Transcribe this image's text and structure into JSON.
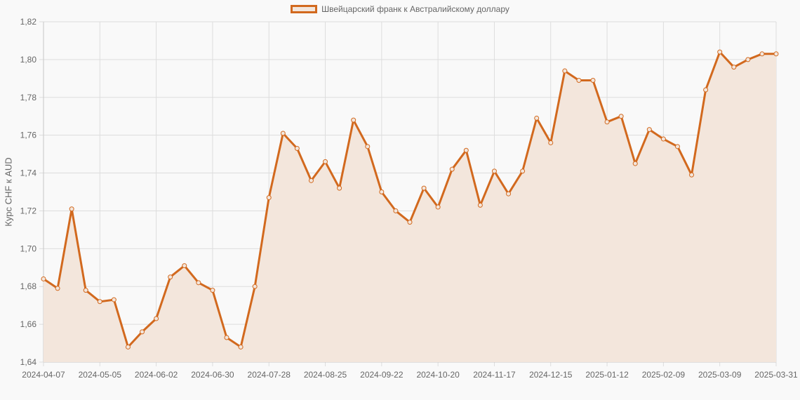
{
  "legend": {
    "label": "Швейцарский франк к Австралийскому доллару"
  },
  "axis": {
    "ylabel": "Курс CHF к AUD"
  },
  "colors": {
    "line": "#d2691e",
    "fill": "#f3e6dc",
    "grid": "#dddddd",
    "background": "#f9f9f9"
  },
  "chart_data": {
    "type": "line",
    "title": "",
    "legend": [
      "Швейцарский франк к Австралийскому доллару"
    ],
    "xlabel": "",
    "ylabel": "Курс CHF к AUD",
    "ylim": [
      1.64,
      1.82
    ],
    "yticks": [
      "1,64",
      "1,66",
      "1,68",
      "1,70",
      "1,72",
      "1,74",
      "1,76",
      "1,78",
      "1,80",
      "1,82"
    ],
    "xtick_labels": [
      "2024-04-07",
      "2024-05-05",
      "2024-06-02",
      "2024-06-30",
      "2024-07-28",
      "2024-08-25",
      "2024-09-22",
      "2024-10-20",
      "2024-11-17",
      "2024-12-15",
      "2025-01-12",
      "2025-02-09",
      "2025-03-09",
      "2025-03-31"
    ],
    "grid": true,
    "legend_position": "top",
    "x": [
      "2024-04-07",
      "2024-04-14",
      "2024-04-21",
      "2024-04-28",
      "2024-05-05",
      "2024-05-12",
      "2024-05-19",
      "2024-05-26",
      "2024-06-02",
      "2024-06-09",
      "2024-06-16",
      "2024-06-23",
      "2024-06-30",
      "2024-07-07",
      "2024-07-14",
      "2024-07-21",
      "2024-07-28",
      "2024-08-04",
      "2024-08-11",
      "2024-08-18",
      "2024-08-25",
      "2024-09-01",
      "2024-09-08",
      "2024-09-15",
      "2024-09-22",
      "2024-09-29",
      "2024-10-06",
      "2024-10-13",
      "2024-10-20",
      "2024-10-27",
      "2024-11-03",
      "2024-11-10",
      "2024-11-17",
      "2024-11-24",
      "2024-12-01",
      "2024-12-08",
      "2024-12-15",
      "2024-12-22",
      "2024-12-29",
      "2025-01-05",
      "2025-01-12",
      "2025-01-19",
      "2025-01-26",
      "2025-02-02",
      "2025-02-09",
      "2025-02-16",
      "2025-02-23",
      "2025-03-02",
      "2025-03-09",
      "2025-03-16",
      "2025-03-23",
      "2025-03-30",
      "2025-03-31"
    ],
    "series": [
      {
        "name": "Швейцарский франк к Австралийскому доллару",
        "values": [
          1.684,
          1.679,
          1.721,
          1.678,
          1.672,
          1.673,
          1.648,
          1.656,
          1.663,
          1.685,
          1.691,
          1.682,
          1.678,
          1.653,
          1.648,
          1.68,
          1.727,
          1.761,
          1.753,
          1.736,
          1.746,
          1.732,
          1.768,
          1.754,
          1.73,
          1.72,
          1.714,
          1.732,
          1.722,
          1.742,
          1.752,
          1.723,
          1.741,
          1.729,
          1.741,
          1.769,
          1.756,
          1.794,
          1.789,
          1.789,
          1.767,
          1.77,
          1.745,
          1.763,
          1.758,
          1.754,
          1.739,
          1.784,
          1.804,
          1.796,
          1.8,
          1.803,
          1.803
        ]
      }
    ]
  }
}
